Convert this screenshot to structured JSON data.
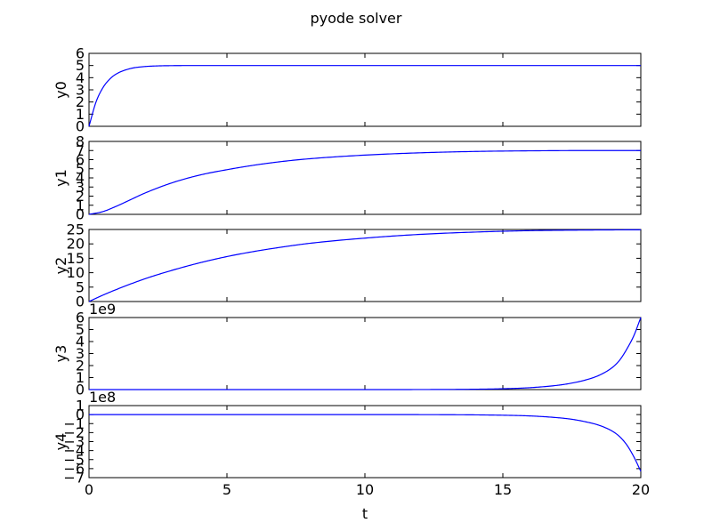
{
  "chart_data": {
    "type": "line",
    "title": "pyode solver",
    "xlabel": "t",
    "xlim": [
      0,
      20
    ],
    "xticks": [
      "0",
      "5",
      "10",
      "15",
      "20"
    ],
    "line_color": "#0000ff",
    "grid": false,
    "subplots": [
      {
        "ylabel": "y0",
        "ylim": [
          0,
          6
        ],
        "ytick_values": [
          0,
          1,
          2,
          3,
          4,
          5,
          6
        ],
        "ytick_labels": [
          "0",
          "1",
          "2",
          "3",
          "4",
          "5",
          "6"
        ],
        "offset_text": "",
        "x": [
          0,
          0.25,
          0.5,
          0.75,
          1,
          1.5,
          2,
          2.5,
          3,
          4,
          5,
          7.5,
          10,
          12.5,
          15,
          17.5,
          20
        ],
        "y": [
          0,
          1.97,
          3.16,
          3.88,
          4.32,
          4.75,
          4.91,
          4.97,
          4.99,
          5.0,
          5.0,
          5.0,
          5.0,
          5.0,
          5.0,
          5.0,
          5.0
        ]
      },
      {
        "ylabel": "y1",
        "ylim": [
          0,
          8
        ],
        "ytick_values": [
          0,
          1,
          2,
          3,
          4,
          5,
          6,
          7,
          8
        ],
        "ytick_labels": [
          "0",
          "1",
          "2",
          "3",
          "4",
          "5",
          "6",
          "7",
          "8"
        ],
        "offset_text": "",
        "x": [
          0,
          0.5,
          1,
          1.5,
          2,
          3,
          4,
          5,
          6,
          7,
          8,
          10,
          12,
          14,
          16,
          18,
          20
        ],
        "y": [
          0,
          0.3,
          0.9,
          1.6,
          2.3,
          3.45,
          4.3,
          4.9,
          5.4,
          5.8,
          6.1,
          6.5,
          6.75,
          6.9,
          6.97,
          7.0,
          7.0
        ]
      },
      {
        "ylabel": "y2",
        "ylim": [
          0,
          25
        ],
        "ytick_values": [
          0,
          5,
          10,
          15,
          20,
          25
        ],
        "ytick_labels": [
          "0",
          "5",
          "10",
          "15",
          "20",
          "25"
        ],
        "offset_text": "",
        "x": [
          0,
          0.5,
          1,
          2,
          3,
          4,
          5,
          6,
          7,
          8,
          10,
          12,
          14,
          16,
          18,
          20
        ],
        "y": [
          0,
          2.2,
          4.2,
          7.8,
          10.8,
          13.4,
          15.6,
          17.4,
          18.9,
          20.2,
          22.0,
          23.3,
          24.1,
          24.6,
          24.8,
          24.9
        ]
      },
      {
        "ylabel": "y3",
        "ylim": [
          0,
          6
        ],
        "ytick_values": [
          0,
          1,
          2,
          3,
          4,
          5,
          6
        ],
        "ytick_labels": [
          "0",
          "1",
          "2",
          "3",
          "4",
          "5",
          "6"
        ],
        "offset_text": "1e9",
        "x": [
          0,
          5,
          10,
          12,
          14,
          15,
          16,
          17,
          17.5,
          18,
          18.5,
          19,
          19.25,
          19.5,
          19.75,
          20
        ],
        "y": [
          0,
          0,
          0,
          0.004,
          0.03,
          0.07,
          0.16,
          0.36,
          0.54,
          0.8,
          1.2,
          1.9,
          2.5,
          3.4,
          4.5,
          6.0
        ]
      },
      {
        "ylabel": "y4",
        "ylim": [
          -7,
          1
        ],
        "ytick_values": [
          -7,
          -6,
          -5,
          -4,
          -3,
          -2,
          -1,
          0,
          1
        ],
        "ytick_labels": [
          "−7",
          "−6",
          "−5",
          "−4",
          "−3",
          "−2",
          "−1",
          "0",
          "1"
        ],
        "offset_text": "1e8",
        "x": [
          0,
          5,
          10,
          12,
          14,
          15,
          16,
          17,
          17.5,
          18,
          18.5,
          19,
          19.25,
          19.5,
          19.75,
          20
        ],
        "y": [
          0,
          0,
          0,
          -0.004,
          -0.03,
          -0.07,
          -0.15,
          -0.35,
          -0.52,
          -0.8,
          -1.2,
          -1.9,
          -2.5,
          -3.4,
          -4.7,
          -6.3
        ]
      }
    ]
  }
}
